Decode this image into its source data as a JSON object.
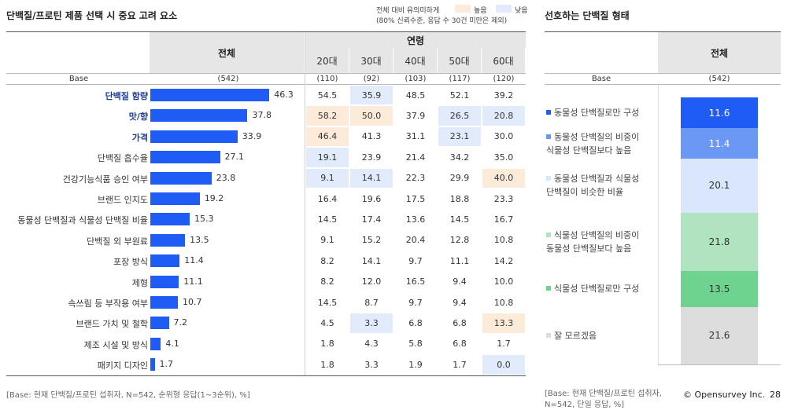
{
  "page": {
    "left_title": "단백질/프로틴 제품 선택 시 중요 고려 요소",
    "right_title": "선호하는 단백질 형태",
    "legend": {
      "line1": "전체 대비 유의미하게",
      "line2": "(80% 신뢰수준, 응답 수 30건 미만은 제외)",
      "high_label": "높음",
      "low_label": "낮음",
      "high_color": "#fdebd9",
      "low_color": "#e2ebfb"
    },
    "footnote_left": "[Base: 현재 단백질/프로틴 섭취자, N=542, 순위형 응답(1~3순위), %]",
    "footnote_right_1": "[Base: 현재 단백질/프로틴 섭취자,",
    "footnote_right_2": "N=542, 단일 응답, %]",
    "brand": "© Opensurvey Inc.",
    "page_number": "28"
  },
  "chart_data": [
    {
      "type": "bar",
      "orientation": "horizontal",
      "title": "단백질/프로틴 제품 선택 시 중요 고려 요소",
      "total_header": "전체",
      "age_header": "연령",
      "base_label": "Base",
      "base_total": "(542)",
      "bar_color": "#1f5cf5",
      "xlim": [
        0,
        60
      ],
      "age_groups": [
        "20대",
        "30대",
        "40대",
        "50대",
        "60대"
      ],
      "age_bases": [
        "(110)",
        "(92)",
        "(103)",
        "(117)",
        "(120)"
      ],
      "categories": [
        "단백질 함량",
        "맛/향",
        "가격",
        "단백질 흡수율",
        "건강기능식품 승인 여부",
        "브랜드 인지도",
        "동물성 단백질과 식물성 단백질 비율",
        "단백질 외 부원료",
        "포장 방식",
        "제형",
        "속쓰림 등 부작용 여부",
        "브랜드 가치 및 철학",
        "제조 시설 및 방식",
        "패키지 디자인"
      ],
      "highlighted": [
        true,
        true,
        true,
        false,
        false,
        false,
        false,
        false,
        false,
        false,
        false,
        false,
        false,
        false
      ],
      "values": [
        46.3,
        37.8,
        33.9,
        27.1,
        23.8,
        19.2,
        15.3,
        13.5,
        11.4,
        11.1,
        10.7,
        7.2,
        4.1,
        1.7
      ],
      "age_values": [
        [
          "54.5",
          "35.9",
          "48.5",
          "52.1",
          "39.2"
        ],
        [
          "58.2",
          "50.0",
          "37.9",
          "26.5",
          "20.8"
        ],
        [
          "46.4",
          "41.3",
          "31.1",
          "23.1",
          "30.0"
        ],
        [
          "19.1",
          "23.9",
          "21.4",
          "34.2",
          "35.0"
        ],
        [
          "9.1",
          "14.1",
          "22.3",
          "29.9",
          "40.0"
        ],
        [
          "16.4",
          "19.6",
          "17.5",
          "18.8",
          "23.3"
        ],
        [
          "14.5",
          "17.4",
          "13.6",
          "14.5",
          "16.7"
        ],
        [
          "9.1",
          "15.2",
          "20.4",
          "12.8",
          "10.8"
        ],
        [
          "8.2",
          "14.1",
          "9.7",
          "11.1",
          "14.2"
        ],
        [
          "8.2",
          "12.0",
          "16.5",
          "9.4",
          "10.0"
        ],
        [
          "14.5",
          "8.7",
          "9.7",
          "9.4",
          "10.8"
        ],
        [
          "4.5",
          "3.3",
          "6.8",
          "6.8",
          "13.3"
        ],
        [
          "1.8",
          "4.3",
          "5.8",
          "6.8",
          "1.7"
        ],
        [
          "1.8",
          "3.3",
          "1.9",
          "1.7",
          "0.0"
        ]
      ],
      "significance": [
        [
          "",
          "low",
          "",
          "",
          ""
        ],
        [
          "high",
          "high",
          "",
          "low",
          "low"
        ],
        [
          "high",
          "",
          "",
          "low",
          ""
        ],
        [
          "low",
          "",
          "",
          "",
          ""
        ],
        [
          "low",
          "low",
          "",
          "",
          "high"
        ],
        [
          "",
          "",
          "",
          "",
          ""
        ],
        [
          "",
          "",
          "",
          "",
          ""
        ],
        [
          "",
          "",
          "",
          "",
          ""
        ],
        [
          "",
          "",
          "",
          "",
          ""
        ],
        [
          "",
          "",
          "",
          "",
          ""
        ],
        [
          "",
          "",
          "",
          "",
          ""
        ],
        [
          "",
          "low",
          "",
          "",
          "high"
        ],
        [
          "",
          "",
          "",
          "",
          ""
        ],
        [
          "",
          "",
          "",
          "",
          "low"
        ]
      ]
    },
    {
      "type": "bar",
      "orientation": "stacked-vertical",
      "title": "선호하는 단백질 형태",
      "total_header": "전체",
      "base_label": "Base",
      "base_total": "(542)",
      "segments": [
        {
          "line1": "동물성 단백질로만 구성",
          "line2": "",
          "value": 11.6,
          "color": "#1f5cf5",
          "text_color": "#ffffff"
        },
        {
          "line1": "동물성 단백질의 비중이",
          "line2": "식물성 단백질보다 높음",
          "value": 11.4,
          "color": "#6b97f5",
          "text_color": "#ffffff"
        },
        {
          "line1": "동물성 단백질과 식물성",
          "line2": "단백질이 비슷한 비율",
          "value": 20.1,
          "color": "#dae6fb",
          "text_color": "#333333"
        },
        {
          "line1": "식물성 단백질의 비중이",
          "line2": "동물성 단백질보다 높음",
          "value": 21.8,
          "color": "#b0e3bf",
          "text_color": "#333333"
        },
        {
          "line1": "식물성 단백질로만 구성",
          "line2": "",
          "value": 13.5,
          "color": "#6dd38e",
          "text_color": "#333333"
        },
        {
          "line1": "잘 모르겠음",
          "line2": "",
          "value": 21.6,
          "color": "#dddddd",
          "text_color": "#333333"
        }
      ]
    }
  ]
}
